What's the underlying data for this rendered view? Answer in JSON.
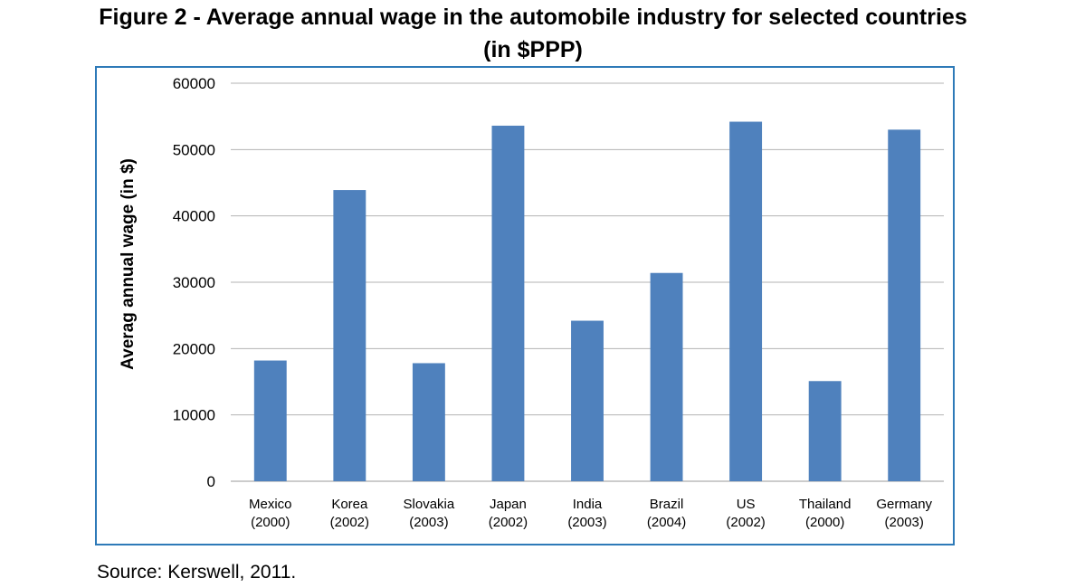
{
  "page": {
    "title_line1": "Figure 2 - Average annual wage in the automobile industry for selected countries",
    "title_line2": "(in $PPP)",
    "source": "Source: Kerswell, 2011."
  },
  "colors": {
    "bar": "#4f81bd",
    "grid": "#b3b3b3",
    "frame": "#2e7ab8"
  },
  "chart_data": {
    "type": "bar",
    "categories": [
      [
        "Mexico",
        "(2000)"
      ],
      [
        "Korea",
        "(2002)"
      ],
      [
        "Slovakia",
        "(2003)"
      ],
      [
        "Japan",
        "(2002)"
      ],
      [
        "India",
        "(2003)"
      ],
      [
        "Brazil",
        "(2004)"
      ],
      [
        "US",
        "(2002)"
      ],
      [
        "Thailand",
        "(2000)"
      ],
      [
        "Germany",
        "(2003)"
      ]
    ],
    "values": [
      18200,
      43900,
      17800,
      53600,
      24200,
      31400,
      54200,
      15100,
      53000
    ],
    "ylabel": "Averag annual wage (in $)",
    "xlabel": "",
    "ylim": [
      0,
      60000
    ],
    "yticks": [
      "0",
      "10000",
      "20000",
      "30000",
      "40000",
      "50000",
      "60000"
    ],
    "grid": true,
    "legend": "none"
  }
}
